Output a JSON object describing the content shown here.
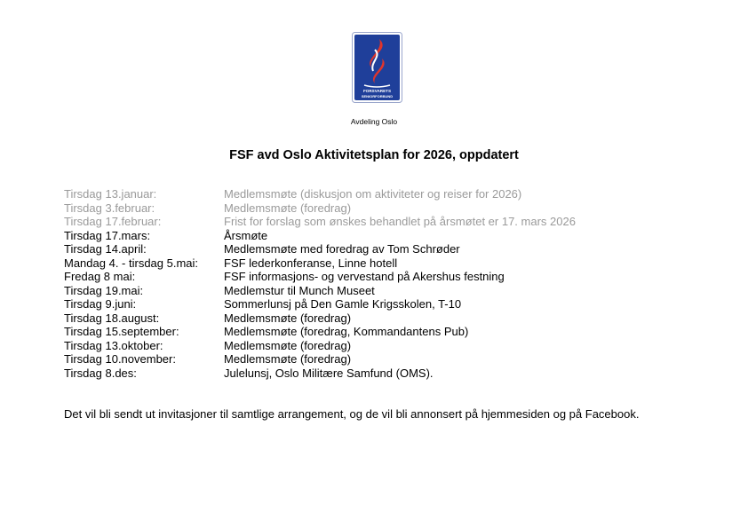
{
  "header": {
    "logo_text": "FORSVARETS SENIORFORBUND",
    "department": "Avdeling Oslo",
    "title": "FSF avd Oslo Aktivitetsplan for 2026, oppdatert"
  },
  "activities": [
    {
      "date": "Tirsdag 13.januar:",
      "activity": "Medlemsmøte (diskusjon om aktiviteter og reiser for 2026)",
      "past": true
    },
    {
      "date": "Tirsdag 3.februar:",
      "activity": "Medlemsmøte (foredrag)",
      "past": true
    },
    {
      "date": "Tirsdag 17.februar:",
      "activity": "Frist for forslag som ønskes behandlet på årsmøtet er 17. mars 2026",
      "past": true
    },
    {
      "date": "Tirsdag 17.mars:",
      "activity": "Årsmøte",
      "past": false
    },
    {
      "date": "Tirsdag 14.april:",
      "activity": "Medlemsmøte med foredrag av Tom Schrøder",
      "past": false
    },
    {
      "date": "Mandag 4. - tirsdag 5.mai:",
      "activity": "FSF lederkonferanse, Linne hotell",
      "past": false
    },
    {
      "date": "Fredag 8 mai:",
      "activity": "FSF informasjons- og vervestand på Akershus festning",
      "past": false
    },
    {
      "date": "Tirsdag 19.mai:",
      "activity": "Medlemstur til Munch Museet",
      "past": false
    },
    {
      "date": "Tirsdag 9.juni:",
      "activity": "Sommerlunsj på Den Gamle Krigsskolen, T-10",
      "past": false
    },
    {
      "date": "Tirsdag 18.august:",
      "activity": "Medlemsmøte (foredrag)",
      "past": false
    },
    {
      "date": "Tirsdag 15.september:",
      "activity": "Medlemsmøte (foredrag, Kommandantens Pub)",
      "past": false
    },
    {
      "date": "Tirsdag 13.oktober:",
      "activity": "Medlemsmøte (foredrag)",
      "past": false
    },
    {
      "date": "Tirsdag 10.november:",
      "activity": "Medlemsmøte (foredrag)",
      "past": false
    },
    {
      "date": "Tirsdag 8.des:",
      "activity": "Julelunsj, Oslo Militære Samfund (OMS).",
      "past": false
    }
  ],
  "footer": "Det vil bli sendt ut invitasjoner til samtlige arrangement, og de vil bli annonsert på hjemmesiden og på Facebook.",
  "colors": {
    "past": "#9a9a9a",
    "logo_blue": "#1f3f9a",
    "logo_red": "#e0352b"
  }
}
